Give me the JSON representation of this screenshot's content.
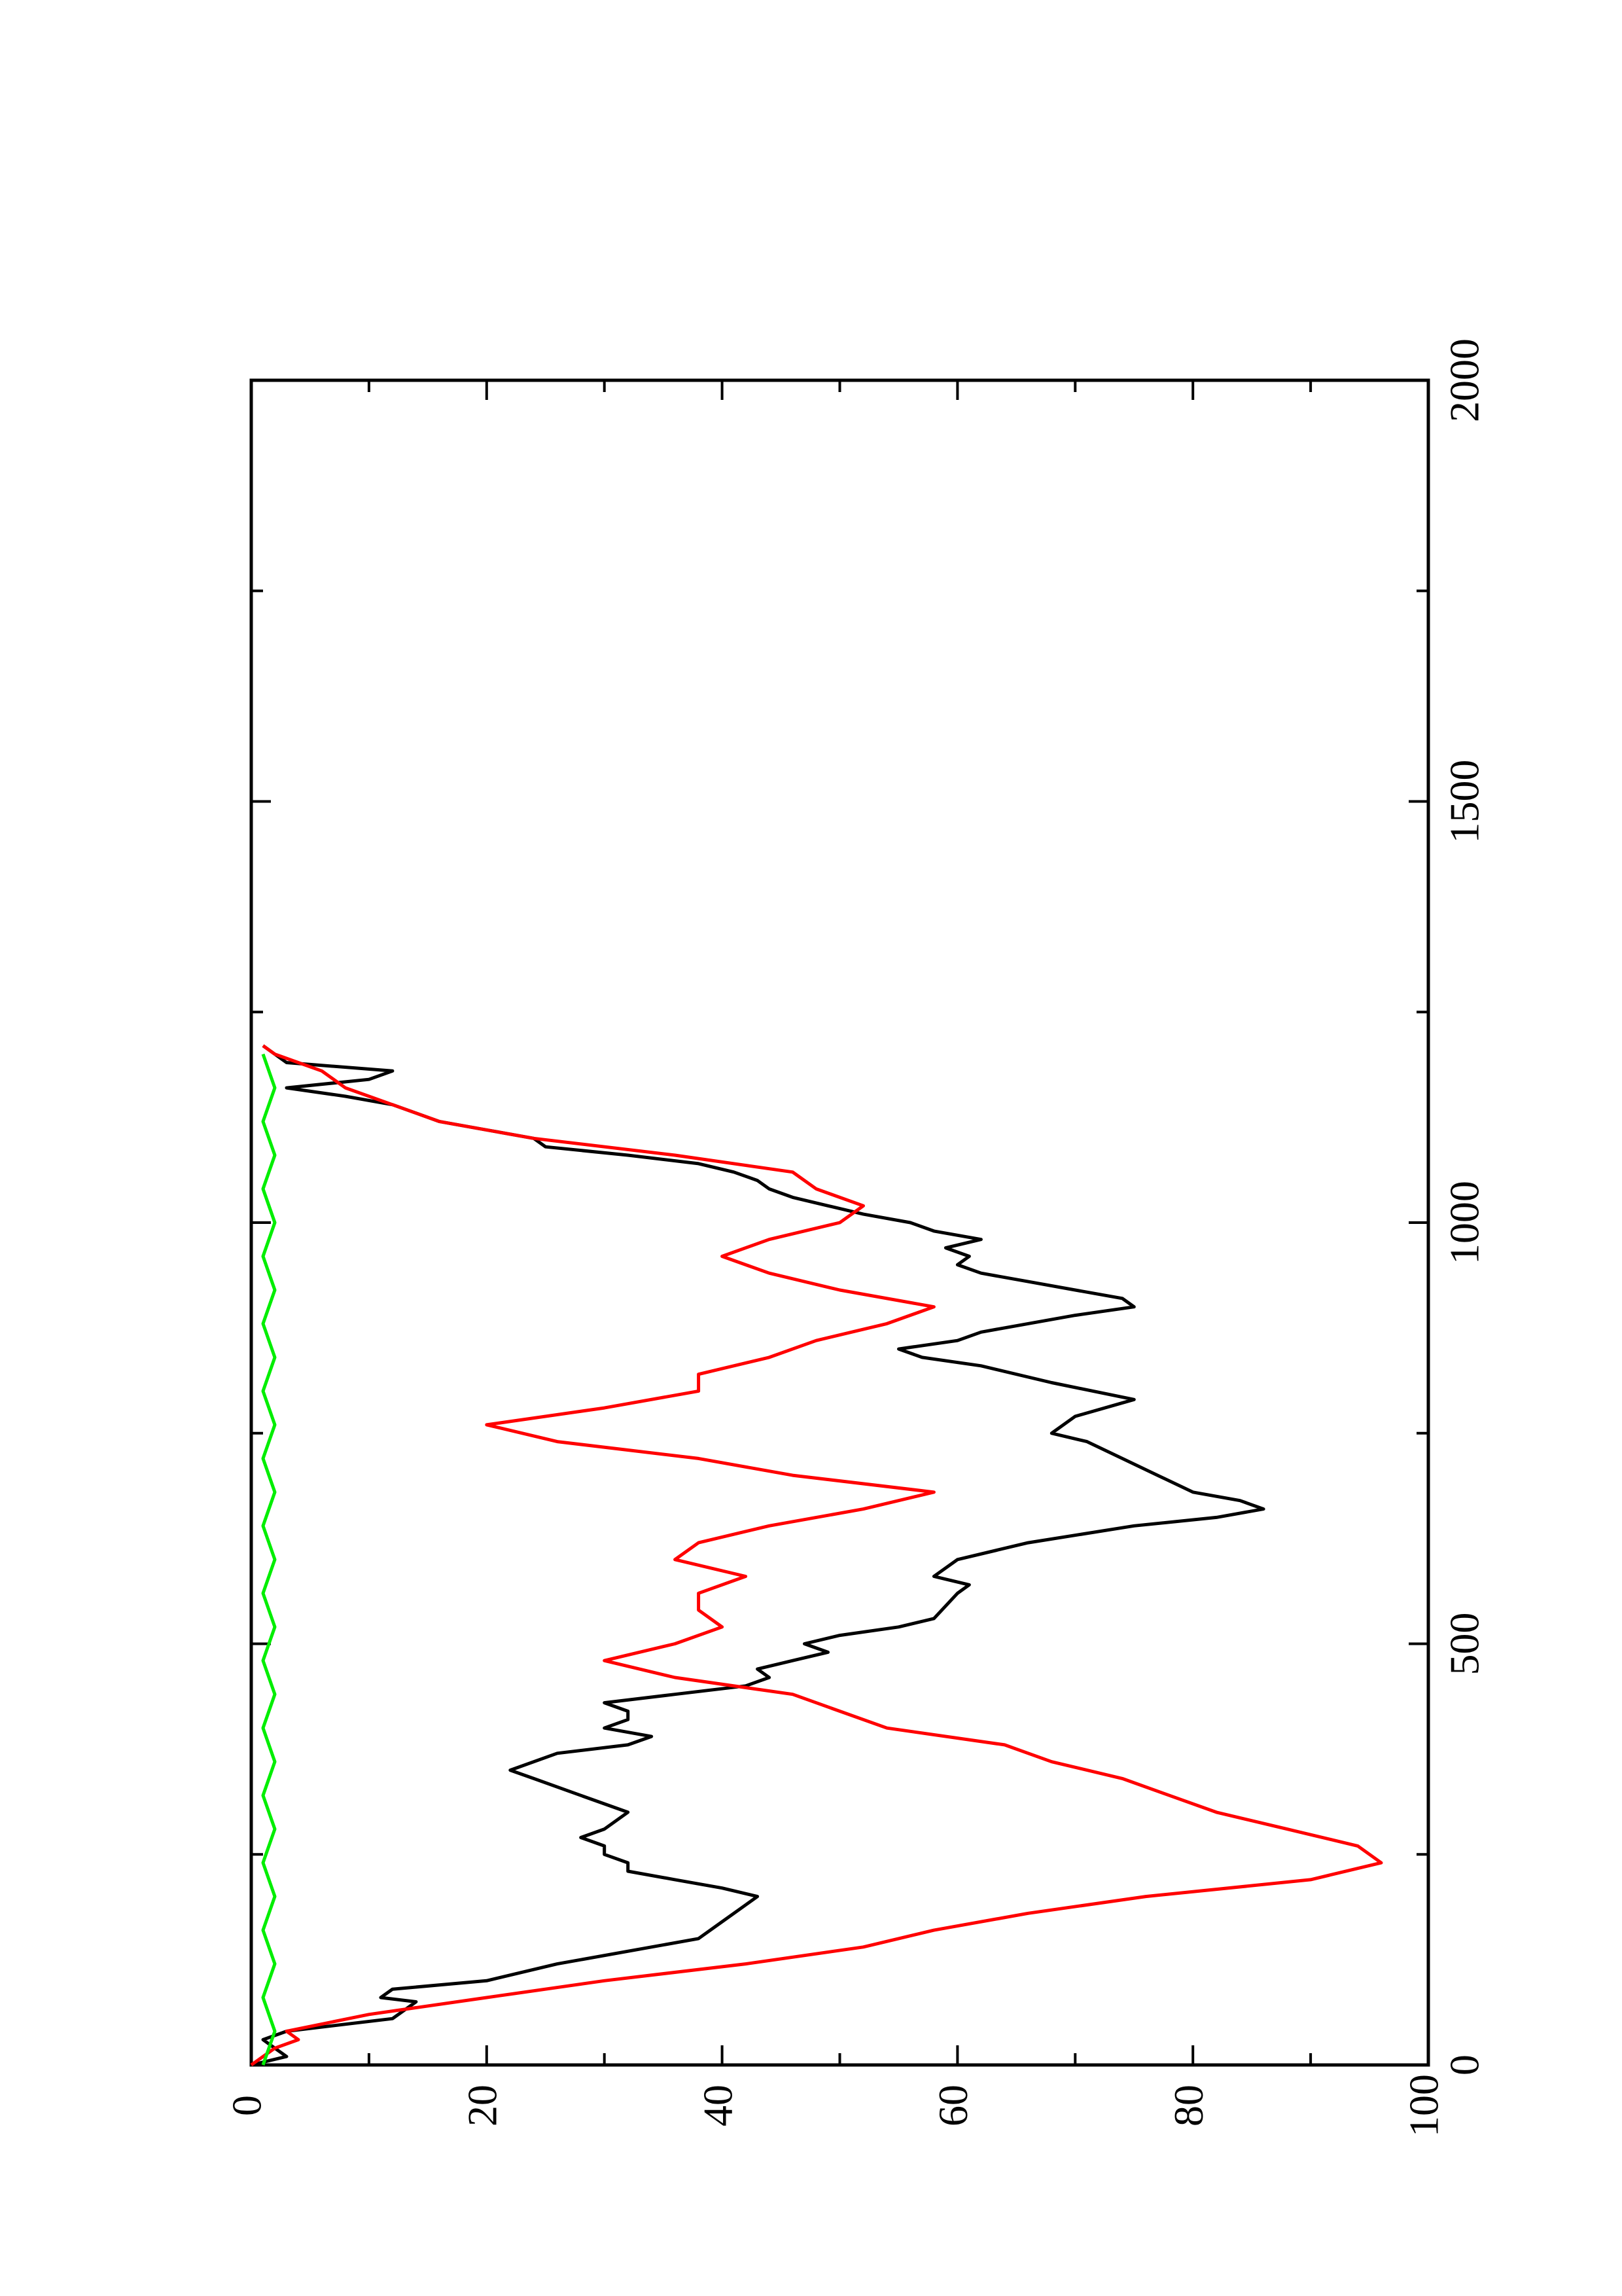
{
  "chart_data": {
    "type": "line",
    "orientation": "rotated-90-ccw",
    "title": "",
    "xlabel": "",
    "ylabel": "",
    "xlim": [
      0,
      2000
    ],
    "ylim": [
      0,
      100
    ],
    "x_ticks": [
      0,
      500,
      1000,
      1500,
      2000
    ],
    "y_ticks": [
      0,
      20,
      40,
      60,
      80,
      100
    ],
    "x_minor_ticks": [
      250,
      750,
      1250,
      1750
    ],
    "y_minor_ticks": [
      10,
      30,
      50,
      70,
      90
    ],
    "grid": false,
    "legend": "none",
    "series": [
      {
        "color": "#000000",
        "points": [
          [
            0,
            0
          ],
          [
            10,
            3
          ],
          [
            20,
            2
          ],
          [
            30,
            1
          ],
          [
            40,
            3
          ],
          [
            55,
            12
          ],
          [
            75,
            14
          ],
          [
            80,
            11
          ],
          [
            90,
            12
          ],
          [
            100,
            20
          ],
          [
            120,
            26
          ],
          [
            140,
            34
          ],
          [
            150,
            38
          ],
          [
            170,
            40
          ],
          [
            190,
            42
          ],
          [
            200,
            43
          ],
          [
            210,
            40
          ],
          [
            220,
            36
          ],
          [
            230,
            32
          ],
          [
            240,
            32
          ],
          [
            250,
            30
          ],
          [
            260,
            30
          ],
          [
            270,
            28
          ],
          [
            280,
            30
          ],
          [
            300,
            32
          ],
          [
            320,
            28
          ],
          [
            340,
            24
          ],
          [
            350,
            22
          ],
          [
            370,
            26
          ],
          [
            380,
            32
          ],
          [
            390,
            34
          ],
          [
            400,
            30
          ],
          [
            410,
            32
          ],
          [
            420,
            32
          ],
          [
            430,
            30
          ],
          [
            440,
            36
          ],
          [
            450,
            42
          ],
          [
            460,
            44
          ],
          [
            470,
            43
          ],
          [
            480,
            46
          ],
          [
            490,
            49
          ],
          [
            500,
            47
          ],
          [
            510,
            50
          ],
          [
            520,
            55
          ],
          [
            530,
            58
          ],
          [
            560,
            60
          ],
          [
            570,
            61
          ],
          [
            580,
            58
          ],
          [
            600,
            60
          ],
          [
            620,
            66
          ],
          [
            640,
            75
          ],
          [
            650,
            82
          ],
          [
            660,
            86
          ],
          [
            670,
            84
          ],
          [
            680,
            80
          ],
          [
            700,
            77
          ],
          [
            720,
            74
          ],
          [
            740,
            71
          ],
          [
            750,
            68
          ],
          [
            770,
            70
          ],
          [
            790,
            75
          ],
          [
            810,
            68
          ],
          [
            830,
            62
          ],
          [
            840,
            57
          ],
          [
            850,
            55
          ],
          [
            860,
            60
          ],
          [
            870,
            62
          ],
          [
            880,
            66
          ],
          [
            890,
            70
          ],
          [
            900,
            75
          ],
          [
            910,
            74
          ],
          [
            920,
            70
          ],
          [
            930,
            66
          ],
          [
            940,
            62
          ],
          [
            950,
            60
          ],
          [
            960,
            61
          ],
          [
            970,
            59
          ],
          [
            980,
            62
          ],
          [
            990,
            58
          ],
          [
            1000,
            56
          ],
          [
            1010,
            52
          ],
          [
            1020,
            49
          ],
          [
            1030,
            46
          ],
          [
            1040,
            44
          ],
          [
            1050,
            43
          ],
          [
            1060,
            41
          ],
          [
            1070,
            38
          ],
          [
            1080,
            32
          ],
          [
            1090,
            25
          ],
          [
            1100,
            24
          ],
          [
            1110,
            20
          ],
          [
            1120,
            16
          ],
          [
            1130,
            14
          ],
          [
            1140,
            12
          ],
          [
            1150,
            8
          ],
          [
            1160,
            3
          ],
          [
            1170,
            10
          ],
          [
            1180,
            12
          ],
          [
            1190,
            3
          ],
          [
            1200,
            2
          ],
          [
            1210,
            1
          ]
        ]
      },
      {
        "color": "#ff0000",
        "points": [
          [
            0,
            0
          ],
          [
            20,
            2
          ],
          [
            30,
            4
          ],
          [
            40,
            3
          ],
          [
            60,
            10
          ],
          [
            80,
            20
          ],
          [
            100,
            30
          ],
          [
            120,
            42
          ],
          [
            140,
            52
          ],
          [
            160,
            58
          ],
          [
            180,
            66
          ],
          [
            200,
            76
          ],
          [
            220,
            90
          ],
          [
            240,
            96
          ],
          [
            260,
            94
          ],
          [
            280,
            88
          ],
          [
            300,
            82
          ],
          [
            320,
            78
          ],
          [
            340,
            74
          ],
          [
            360,
            68
          ],
          [
            380,
            64
          ],
          [
            400,
            54
          ],
          [
            420,
            50
          ],
          [
            440,
            46
          ],
          [
            460,
            36
          ],
          [
            480,
            30
          ],
          [
            500,
            36
          ],
          [
            520,
            40
          ],
          [
            540,
            38
          ],
          [
            560,
            38
          ],
          [
            580,
            42
          ],
          [
            600,
            36
          ],
          [
            620,
            38
          ],
          [
            640,
            44
          ],
          [
            660,
            52
          ],
          [
            680,
            58
          ],
          [
            700,
            46
          ],
          [
            720,
            38
          ],
          [
            740,
            26
          ],
          [
            760,
            20
          ],
          [
            780,
            30
          ],
          [
            800,
            38
          ],
          [
            820,
            38
          ],
          [
            840,
            44
          ],
          [
            860,
            48
          ],
          [
            880,
            54
          ],
          [
            900,
            58
          ],
          [
            920,
            50
          ],
          [
            940,
            44
          ],
          [
            960,
            40
          ],
          [
            980,
            44
          ],
          [
            1000,
            50
          ],
          [
            1020,
            52
          ],
          [
            1040,
            48
          ],
          [
            1060,
            46
          ],
          [
            1080,
            36
          ],
          [
            1100,
            24
          ],
          [
            1120,
            16
          ],
          [
            1140,
            12
          ],
          [
            1160,
            8
          ],
          [
            1180,
            6
          ],
          [
            1200,
            2
          ],
          [
            1210,
            1
          ]
        ]
      },
      {
        "color": "#00ee00",
        "points": [
          [
            0,
            1
          ],
          [
            40,
            2
          ],
          [
            80,
            1
          ],
          [
            120,
            2
          ],
          [
            160,
            1
          ],
          [
            200,
            2
          ],
          [
            240,
            1
          ],
          [
            280,
            2
          ],
          [
            320,
            1
          ],
          [
            360,
            2
          ],
          [
            400,
            1
          ],
          [
            440,
            2
          ],
          [
            480,
            1
          ],
          [
            520,
            2
          ],
          [
            560,
            1
          ],
          [
            600,
            2
          ],
          [
            640,
            1
          ],
          [
            680,
            2
          ],
          [
            720,
            1
          ],
          [
            760,
            2
          ],
          [
            800,
            1
          ],
          [
            840,
            2
          ],
          [
            880,
            1
          ],
          [
            920,
            2
          ],
          [
            960,
            1
          ],
          [
            1000,
            2
          ],
          [
            1040,
            1
          ],
          [
            1080,
            2
          ],
          [
            1120,
            1
          ],
          [
            1160,
            2
          ],
          [
            1200,
            1
          ]
        ]
      }
    ]
  }
}
